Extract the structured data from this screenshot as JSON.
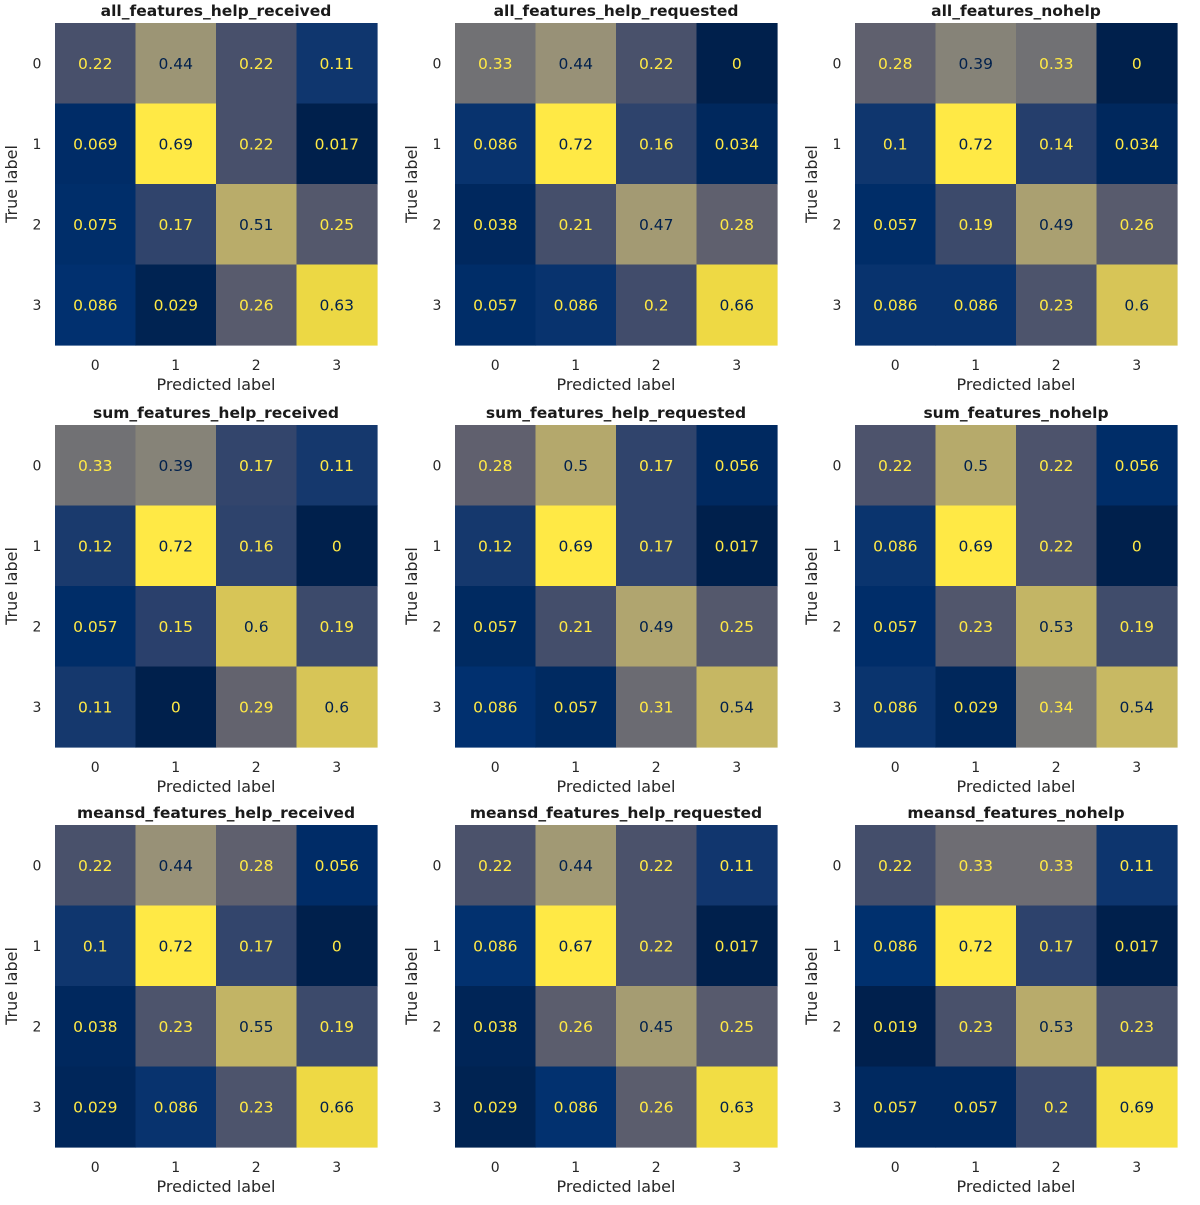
{
  "chart_data": [
    {
      "type": "heatmap",
      "title": "all_features_help_received",
      "xlabel": "Predicted label",
      "ylabel": "True label",
      "x_ticks": [
        "0",
        "1",
        "2",
        "3"
      ],
      "y_ticks": [
        "0",
        "1",
        "2",
        "3"
      ],
      "values": [
        [
          "0.22",
          "0.44",
          "0.22",
          "0.11"
        ],
        [
          "0.069",
          "0.69",
          "0.22",
          "0.017"
        ],
        [
          "0.075",
          "0.17",
          "0.51",
          "0.25"
        ],
        [
          "0.086",
          "0.029",
          "0.26",
          "0.63"
        ]
      ]
    },
    {
      "type": "heatmap",
      "title": "all_features_help_requested",
      "xlabel": "Predicted label",
      "ylabel": "True label",
      "x_ticks": [
        "0",
        "1",
        "2",
        "3"
      ],
      "y_ticks": [
        "0",
        "1",
        "2",
        "3"
      ],
      "values": [
        [
          "0.33",
          "0.44",
          "0.22",
          "0"
        ],
        [
          "0.086",
          "0.72",
          "0.16",
          "0.034"
        ],
        [
          "0.038",
          "0.21",
          "0.47",
          "0.28"
        ],
        [
          "0.057",
          "0.086",
          "0.2",
          "0.66"
        ]
      ]
    },
    {
      "type": "heatmap",
      "title": "all_features_nohelp",
      "xlabel": "Predicted label",
      "ylabel": "True label",
      "x_ticks": [
        "0",
        "1",
        "2",
        "3"
      ],
      "y_ticks": [
        "0",
        "1",
        "2",
        "3"
      ],
      "values": [
        [
          "0.28",
          "0.39",
          "0.33",
          "0"
        ],
        [
          "0.1",
          "0.72",
          "0.14",
          "0.034"
        ],
        [
          "0.057",
          "0.19",
          "0.49",
          "0.26"
        ],
        [
          "0.086",
          "0.086",
          "0.23",
          "0.6"
        ]
      ]
    },
    {
      "type": "heatmap",
      "title": "sum_features_help_received",
      "xlabel": "Predicted label",
      "ylabel": "True label",
      "x_ticks": [
        "0",
        "1",
        "2",
        "3"
      ],
      "y_ticks": [
        "0",
        "1",
        "2",
        "3"
      ],
      "values": [
        [
          "0.33",
          "0.39",
          "0.17",
          "0.11"
        ],
        [
          "0.12",
          "0.72",
          "0.16",
          "0"
        ],
        [
          "0.057",
          "0.15",
          "0.6",
          "0.19"
        ],
        [
          "0.11",
          "0",
          "0.29",
          "0.6"
        ]
      ]
    },
    {
      "type": "heatmap",
      "title": "sum_features_help_requested",
      "xlabel": "Predicted label",
      "ylabel": "True label",
      "x_ticks": [
        "0",
        "1",
        "2",
        "3"
      ],
      "y_ticks": [
        "0",
        "1",
        "2",
        "3"
      ],
      "values": [
        [
          "0.28",
          "0.5",
          "0.17",
          "0.056"
        ],
        [
          "0.12",
          "0.69",
          "0.17",
          "0.017"
        ],
        [
          "0.057",
          "0.21",
          "0.49",
          "0.25"
        ],
        [
          "0.086",
          "0.057",
          "0.31",
          "0.54"
        ]
      ]
    },
    {
      "type": "heatmap",
      "title": "sum_features_nohelp",
      "xlabel": "Predicted label",
      "ylabel": "True label",
      "x_ticks": [
        "0",
        "1",
        "2",
        "3"
      ],
      "y_ticks": [
        "0",
        "1",
        "2",
        "3"
      ],
      "values": [
        [
          "0.22",
          "0.5",
          "0.22",
          "0.056"
        ],
        [
          "0.086",
          "0.69",
          "0.22",
          "0"
        ],
        [
          "0.057",
          "0.23",
          "0.53",
          "0.19"
        ],
        [
          "0.086",
          "0.029",
          "0.34",
          "0.54"
        ]
      ]
    },
    {
      "type": "heatmap",
      "title": "meansd_features_help_received",
      "xlabel": "Predicted label",
      "ylabel": "True label",
      "x_ticks": [
        "0",
        "1",
        "2",
        "3"
      ],
      "y_ticks": [
        "0",
        "1",
        "2",
        "3"
      ],
      "values": [
        [
          "0.22",
          "0.44",
          "0.28",
          "0.056"
        ],
        [
          "0.1",
          "0.72",
          "0.17",
          "0"
        ],
        [
          "0.038",
          "0.23",
          "0.55",
          "0.19"
        ],
        [
          "0.029",
          "0.086",
          "0.23",
          "0.66"
        ]
      ]
    },
    {
      "type": "heatmap",
      "title": "meansd_features_help_requested",
      "xlabel": "Predicted label",
      "ylabel": "True label",
      "x_ticks": [
        "0",
        "1",
        "2",
        "3"
      ],
      "y_ticks": [
        "0",
        "1",
        "2",
        "3"
      ],
      "values": [
        [
          "0.22",
          "0.44",
          "0.22",
          "0.11"
        ],
        [
          "0.086",
          "0.67",
          "0.22",
          "0.017"
        ],
        [
          "0.038",
          "0.26",
          "0.45",
          "0.25"
        ],
        [
          "0.029",
          "0.086",
          "0.26",
          "0.63"
        ]
      ]
    },
    {
      "type": "heatmap",
      "title": "meansd_features_nohelp",
      "xlabel": "Predicted label",
      "ylabel": "True label",
      "x_ticks": [
        "0",
        "1",
        "2",
        "3"
      ],
      "y_ticks": [
        "0",
        "1",
        "2",
        "3"
      ],
      "values": [
        [
          "0.22",
          "0.33",
          "0.33",
          "0.11"
        ],
        [
          "0.086",
          "0.72",
          "0.17",
          "0.017"
        ],
        [
          "0.019",
          "0.23",
          "0.53",
          "0.23"
        ],
        [
          "0.057",
          "0.057",
          "0.2",
          "0.69"
        ]
      ]
    }
  ],
  "colormap": "cividis",
  "colors": {
    "low": "#00204c",
    "high": "#ffe945",
    "text_on_dark": "#ffe945",
    "text_on_light": "#00204c"
  }
}
